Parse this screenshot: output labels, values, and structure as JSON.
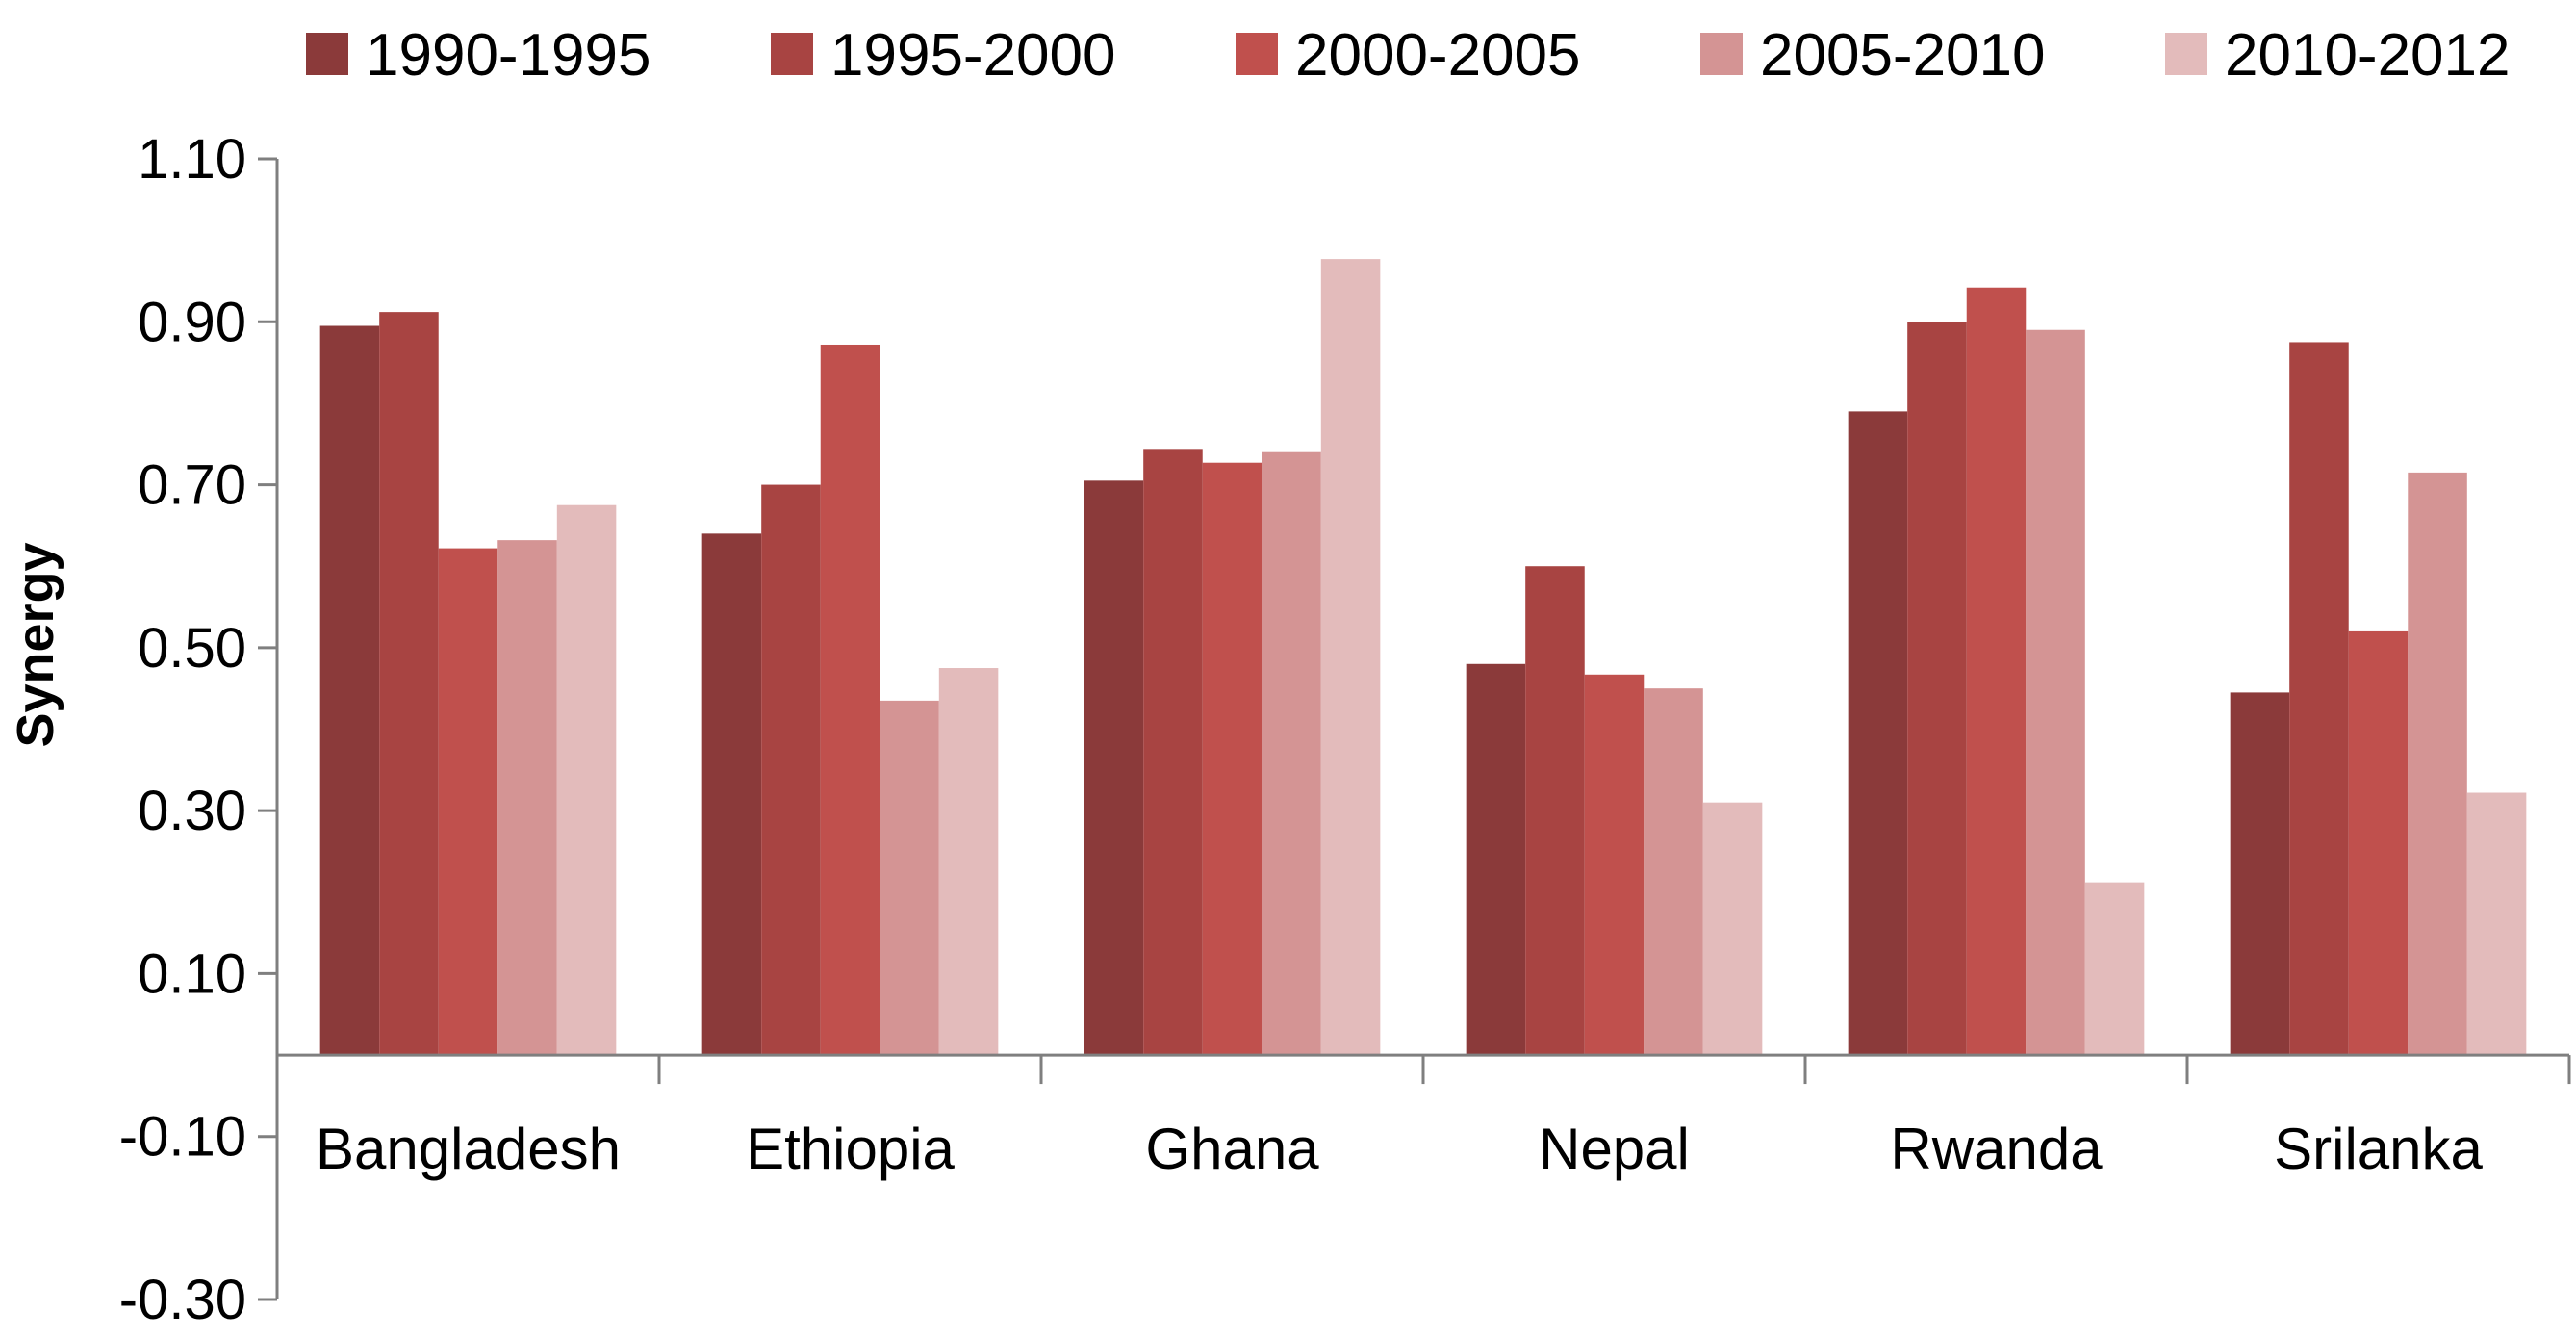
{
  "chart_data": {
    "type": "bar",
    "title": "",
    "xlabel": "",
    "ylabel": "Synergy",
    "ylim": [
      -0.3,
      1.1
    ],
    "yticks": [
      1.1,
      0.9,
      0.7,
      0.5,
      0.3,
      0.1,
      -0.1,
      -0.3
    ],
    "ytick_labels": [
      "1.10",
      "0.90",
      "0.70",
      "0.50",
      "0.30",
      "0.10",
      "-0.10",
      "-0.30"
    ],
    "grid": false,
    "legend_position": "top",
    "categories": [
      "Bangladesh",
      "Ethiopia",
      "Ghana",
      "Nepal",
      "Rwanda",
      "Srilanka"
    ],
    "series": [
      {
        "name": "1990-1995",
        "color": "#8B3A3A",
        "values": [
          0.895,
          0.64,
          0.705,
          0.48,
          0.79,
          0.445
        ]
      },
      {
        "name": "1995-2000",
        "color": "#A84442",
        "values": [
          0.912,
          0.7,
          0.744,
          0.6,
          0.9,
          0.875
        ]
      },
      {
        "name": "2000-2005",
        "color": "#C0504D",
        "values": [
          0.622,
          0.872,
          0.727,
          0.467,
          0.942,
          0.52
        ]
      },
      {
        "name": "2005-2010",
        "color": "#D49494",
        "values": [
          0.632,
          0.435,
          0.74,
          0.45,
          0.89,
          0.715
        ]
      },
      {
        "name": "2010-2012",
        "color": "#E3BBBB",
        "values": [
          0.675,
          0.475,
          0.977,
          0.31,
          0.212,
          0.322
        ]
      }
    ]
  }
}
